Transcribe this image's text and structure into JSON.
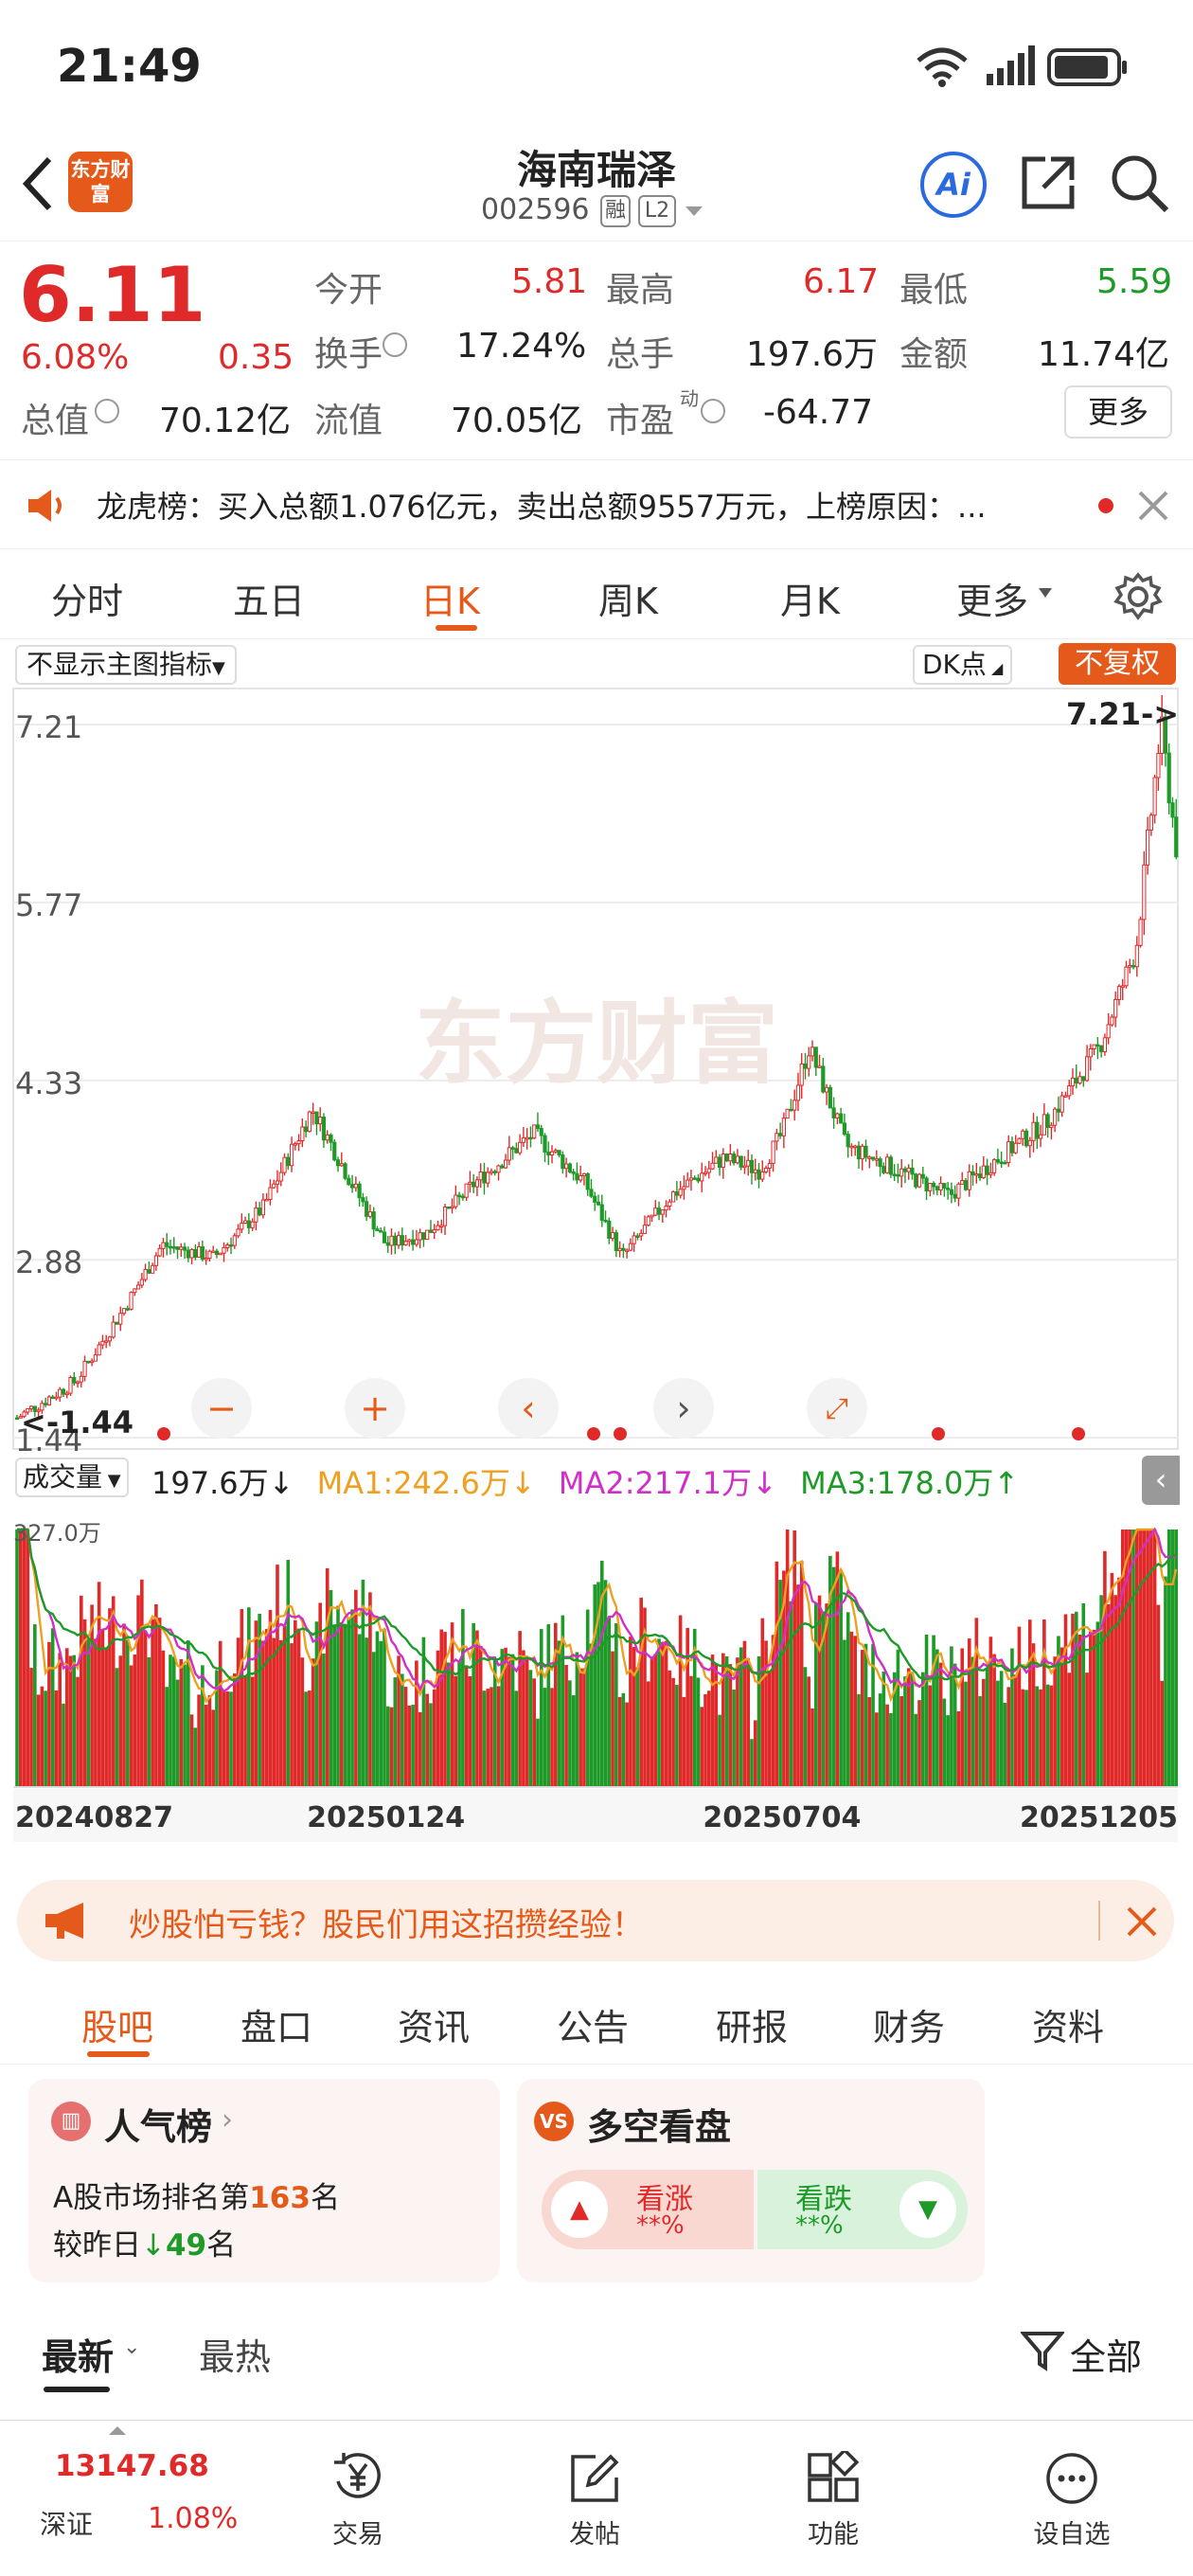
{
  "status_bar": {
    "time": "21:49"
  },
  "header": {
    "stock_name": "海南瑞泽",
    "stock_code": "002596",
    "badge_margin": "融",
    "badge_level": "L2",
    "logo_text": "东方财富",
    "ai_label": "Ai"
  },
  "quote": {
    "price": "6.11",
    "change_pct": "6.08%",
    "change": "0.35",
    "open_label": "今开",
    "open": "5.81",
    "high_label": "最高",
    "high": "6.17",
    "low_label": "最低",
    "low": "5.59",
    "turnover_label": "换手",
    "turnover": "17.24%",
    "volume_label": "总手",
    "volume": "197.6万",
    "amount_label": "金额",
    "amount": "11.74亿",
    "mktcap_label": "总值",
    "mktcap": "70.12亿",
    "float_label": "流值",
    "float_cap": "70.05亿",
    "pe_label": "市盈",
    "pe_sup": "动",
    "pe": "-64.77",
    "more_label": "更多"
  },
  "notice": {
    "text": "龙虎榜：买入总额1.076亿元，卖出总额9557万元，上榜原因：..."
  },
  "chart_tabs": [
    "分时",
    "五日",
    "日K",
    "周K",
    "月K",
    "更多"
  ],
  "chart_toolbar": {
    "indicator_select": "不显示主图指标",
    "dk_button": "DK点",
    "adjust_button": "不复权"
  },
  "watermark": "东方财富",
  "volume_legend": {
    "selector": "成交量",
    "vol": "197.6万↓",
    "ma1": "MA1:242.6万↓",
    "ma2": "MA2:217.1万↓",
    "ma3": "MA3:178.0万↑",
    "max_label": "327.0万"
  },
  "colors": {
    "up": "#e02a2a",
    "down": "#1e9a28",
    "accent": "#e55a1a",
    "ma1": "#f0a020",
    "ma2": "#d030c8",
    "ma3": "#1e9a28"
  },
  "chart_data": {
    "type": "candlestick",
    "y_ticks": [
      "7.21",
      "5.77",
      "4.33",
      "2.88",
      "1.44"
    ],
    "ylim": [
      1.44,
      7.21
    ],
    "x_ticks": [
      "20240827",
      "20250124",
      "20250704",
      "20251205"
    ],
    "max_annotation": "7.21->",
    "min_annotation": "<-1.44",
    "close_trend": [
      [
        "20240827",
        1.6
      ],
      [
        "20240920",
        1.9
      ],
      [
        "20241010",
        2.5
      ],
      [
        "20241025",
        3.0
      ],
      [
        "20241115",
        2.9
      ],
      [
        "20241205",
        3.3
      ],
      [
        "20241225",
        4.1
      ],
      [
        "20250110",
        3.5
      ],
      [
        "20250124",
        3.0
      ],
      [
        "20250210",
        3.1
      ],
      [
        "20250301",
        3.5
      ],
      [
        "20250325",
        3.9
      ],
      [
        "20250415",
        3.5
      ],
      [
        "20250430",
        2.9
      ],
      [
        "20250520",
        3.4
      ],
      [
        "20250610",
        3.7
      ],
      [
        "20250625",
        3.6
      ],
      [
        "20250704",
        3.9
      ],
      [
        "20250715",
        4.6
      ],
      [
        "20250730",
        3.8
      ],
      [
        "20250820",
        3.6
      ],
      [
        "20250910",
        3.4
      ],
      [
        "20250930",
        3.7
      ],
      [
        "20251020",
        4.0
      ],
      [
        "20251110",
        4.6
      ],
      [
        "20251125",
        5.4
      ],
      [
        "20251205",
        7.2
      ],
      [
        "20251212",
        6.11
      ]
    ]
  },
  "ad_banner": {
    "text": "炒股怕亏钱？股民们用这招攒经验！"
  },
  "section_tabs": [
    "股吧",
    "盘口",
    "资讯",
    "公告",
    "研报",
    "财务",
    "资料"
  ],
  "popularity": {
    "title": "人气榜",
    "rank_prefix": "A股市场排名第",
    "rank": "163",
    "rank_suffix": "名",
    "change_prefix": "较昨日",
    "change": "49",
    "change_suffix": "名"
  },
  "bull_bear": {
    "title": "多空看盘",
    "bull_label": "看涨",
    "bull_value": "**%",
    "bear_label": "看跌",
    "bear_value": "**%"
  },
  "feed_tabs": {
    "latest": "最新",
    "hot": "最热",
    "filter": "全部"
  },
  "bottom_nav": {
    "index_value": "13147.68",
    "index_name": "深证",
    "index_change": "1.08%",
    "items": [
      "交易",
      "发帖",
      "功能",
      "设自选"
    ]
  }
}
